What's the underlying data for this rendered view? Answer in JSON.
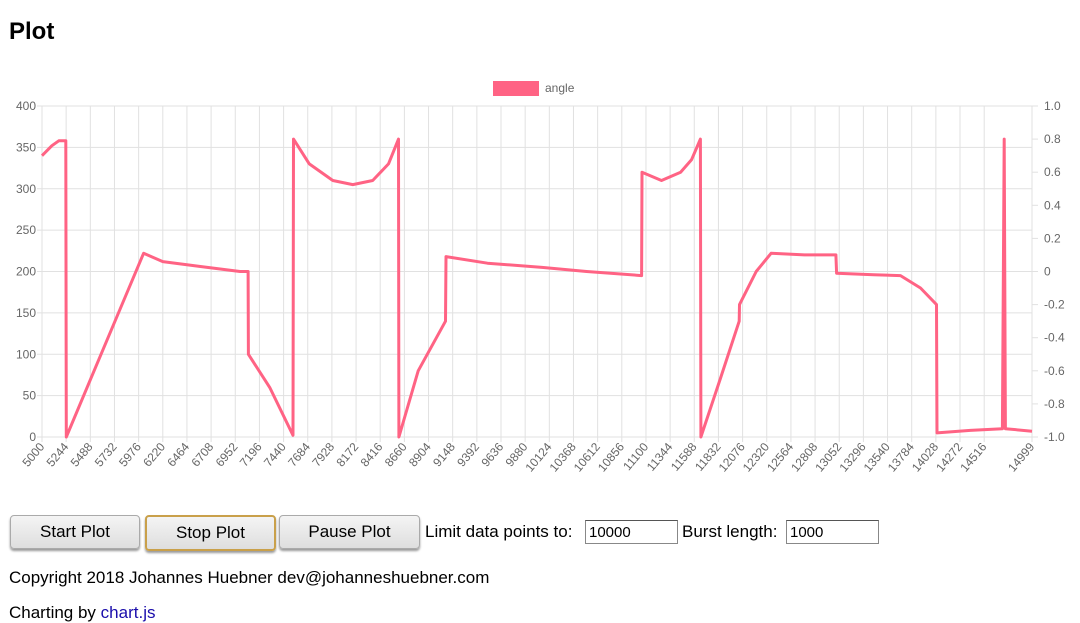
{
  "header": {
    "title": "Plot"
  },
  "chart_data": {
    "type": "line",
    "x": [
      5000,
      5100,
      5170,
      5240,
      5245,
      5600,
      6026,
      6220,
      6600,
      7000,
      7082,
      7085,
      7300,
      7535,
      7540,
      7700,
      7937,
      8139,
      8340,
      8500,
      8601,
      8605,
      8800,
      9075,
      9080,
      9500,
      10050,
      10500,
      11056,
      11060,
      11257,
      11450,
      11560,
      11650,
      11655,
      11850,
      12042,
      12045,
      12213,
      12364,
      12700,
      13018,
      13025,
      13400,
      13671,
      13873,
      14034,
      14040,
      14376,
      14700,
      14718,
      14730,
      14999
    ],
    "series": [
      {
        "name": "angle",
        "color": "#ff6384",
        "values": [
          340,
          352,
          358,
          358,
          0,
          101,
          222,
          212,
          206,
          200,
          200,
          100,
          60,
          2,
          360,
          330,
          310,
          305,
          310,
          330,
          360,
          0,
          80,
          140,
          218,
          210,
          205,
          200,
          195,
          320,
          310,
          320,
          335,
          360,
          0,
          70,
          140,
          160,
          200,
          222,
          220,
          220,
          198,
          196,
          195,
          180,
          160,
          5,
          8,
          10,
          360,
          10,
          7
        ]
      }
    ],
    "xlim": [
      5000,
      14999
    ],
    "xticks": [
      5000,
      5244,
      5488,
      5732,
      5976,
      6220,
      6464,
      6708,
      6952,
      7196,
      7440,
      7684,
      7928,
      8172,
      8416,
      8660,
      8904,
      9148,
      9392,
      9636,
      9880,
      10124,
      10368,
      10612,
      10856,
      11100,
      11344,
      11588,
      11832,
      12076,
      12320,
      12564,
      12808,
      13052,
      13296,
      13540,
      13784,
      14028,
      14272,
      14516,
      14999
    ],
    "ylim": [
      0,
      400
    ],
    "yticks": [
      0,
      50,
      100,
      150,
      200,
      250,
      300,
      350,
      400
    ],
    "y2lim": [
      -1,
      1
    ],
    "y2ticks": [
      {
        "value": -1,
        "label": "-1.0"
      },
      -0.8,
      -0.6,
      -0.4,
      -0.2,
      0,
      0.2,
      0.4,
      0.6,
      0.8,
      {
        "value": 1,
        "label": "1.0"
      }
    ],
    "grid": true,
    "legend": "top"
  },
  "controls": {
    "start": "Start Plot",
    "stop": "Stop Plot",
    "pause": "Pause Plot",
    "limit_label": "Limit data points to:",
    "limit_value": "10000",
    "burst_label": "Burst length:",
    "burst_value": "1000"
  },
  "footer": {
    "copyright": "Copyright 2018 Johannes Huebner dev@johanneshuebner.com",
    "charting": "Charting by",
    "link": "chart.js"
  }
}
